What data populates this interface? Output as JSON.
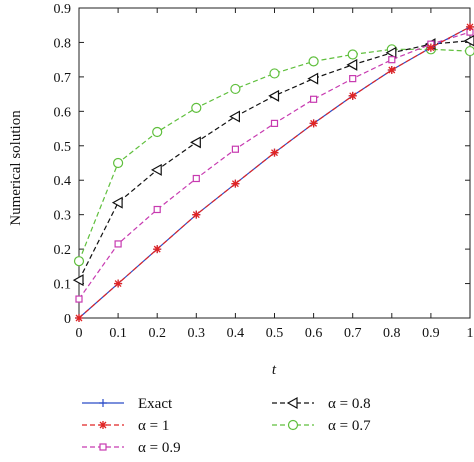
{
  "chart_data": {
    "type": "line",
    "title": "",
    "xlabel": "t",
    "ylabel": "Numerical solution",
    "xlim": [
      0,
      1
    ],
    "ylim": [
      0,
      0.9
    ],
    "grid": false,
    "legend_position": "bottom",
    "x_ticks": [
      "0",
      "0.1",
      "0.2",
      "0.3",
      "0.4",
      "0.5",
      "0.6",
      "0.7",
      "0.8",
      "0.9",
      "1"
    ],
    "y_ticks": [
      "0",
      "0.1",
      "0.2",
      "0.3",
      "0.4",
      "0.5",
      "0.6",
      "0.7",
      "0.8",
      "0.9"
    ],
    "x": [
      0,
      0.1,
      0.2,
      0.3,
      0.4,
      0.5,
      0.6,
      0.7,
      0.8,
      0.9,
      1.0
    ],
    "series": [
      {
        "name": "Exact",
        "legend_label": "Exact",
        "color": "#2b4cc8",
        "dash": "solid",
        "marker": "plus",
        "values": [
          0,
          0.1,
          0.2,
          0.3,
          0.39,
          0.48,
          0.565,
          0.645,
          0.72,
          0.785,
          0.845
        ]
      },
      {
        "name": "α = 1",
        "legend_label": "α = 1",
        "color": "#e02424",
        "dash": "dashed",
        "marker": "asterisk",
        "values": [
          0,
          0.1,
          0.2,
          0.3,
          0.39,
          0.48,
          0.565,
          0.645,
          0.72,
          0.785,
          0.845
        ]
      },
      {
        "name": "α = 0.9",
        "legend_label": "α = 0.9",
        "color": "#c73ab0",
        "dash": "dashed",
        "marker": "square",
        "values": [
          0.055,
          0.215,
          0.315,
          0.405,
          0.49,
          0.565,
          0.635,
          0.695,
          0.75,
          0.795,
          0.83
        ]
      },
      {
        "name": "α = 0.8",
        "legend_label": "α = 0.8",
        "color": "#111111",
        "dash": "dashed",
        "marker": "triangle-left",
        "values": [
          0.11,
          0.335,
          0.43,
          0.51,
          0.585,
          0.645,
          0.695,
          0.735,
          0.77,
          0.795,
          0.805
        ]
      },
      {
        "name": "α = 0.7",
        "legend_label": "α = 0.7",
        "color": "#5fbf3c",
        "dash": "dashed",
        "marker": "circle",
        "values": [
          0.165,
          0.45,
          0.54,
          0.61,
          0.665,
          0.71,
          0.745,
          0.765,
          0.78,
          0.78,
          0.775
        ]
      }
    ]
  }
}
